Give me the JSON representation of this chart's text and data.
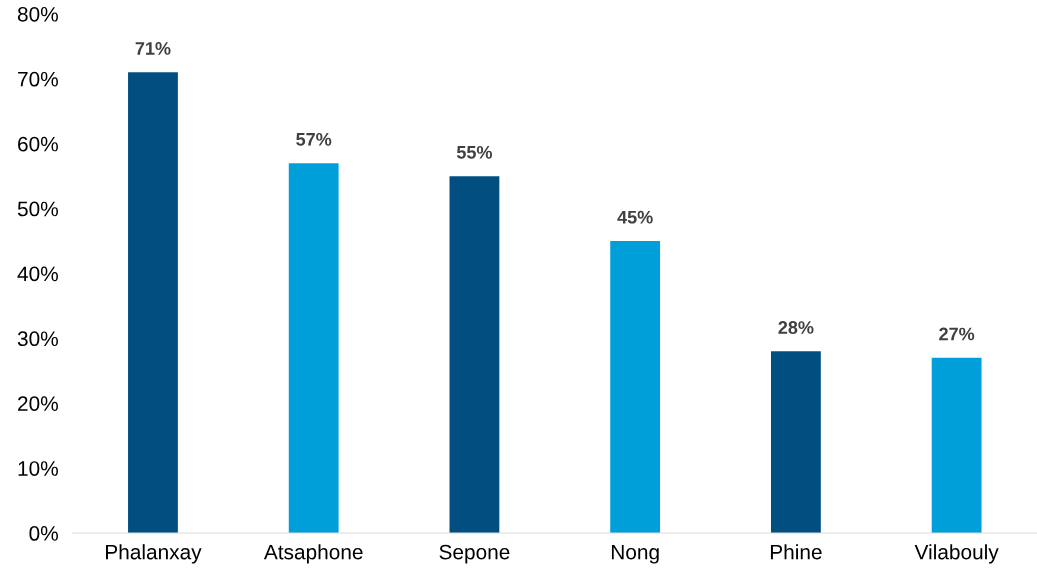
{
  "chart_data": {
    "type": "bar",
    "categories": [
      "Phalanxay",
      "Atsaphone",
      "Sepone",
      "Nong",
      "Phine",
      "Vilabouly"
    ],
    "values": [
      71,
      57,
      55,
      45,
      28,
      27
    ],
    "colors": [
      "#004f80",
      "#009fd9",
      "#004f80",
      "#009fd9",
      "#004f80",
      "#009fd9"
    ],
    "value_labels": [
      "71%",
      "57%",
      "55%",
      "45%",
      "28%",
      "27%"
    ],
    "ylim": [
      0,
      80
    ],
    "yticks": [
      {
        "value": 0,
        "label": "0%"
      },
      {
        "value": 10,
        "label": "10%"
      },
      {
        "value": 20,
        "label": "20%"
      },
      {
        "value": 30,
        "label": "30%"
      },
      {
        "value": 40,
        "label": "40%"
      },
      {
        "value": 50,
        "label": "50%"
      },
      {
        "value": 60,
        "label": "60%"
      },
      {
        "value": 70,
        "label": "70%"
      },
      {
        "value": 80,
        "label": "80%"
      }
    ],
    "grid": false,
    "legend": false
  }
}
